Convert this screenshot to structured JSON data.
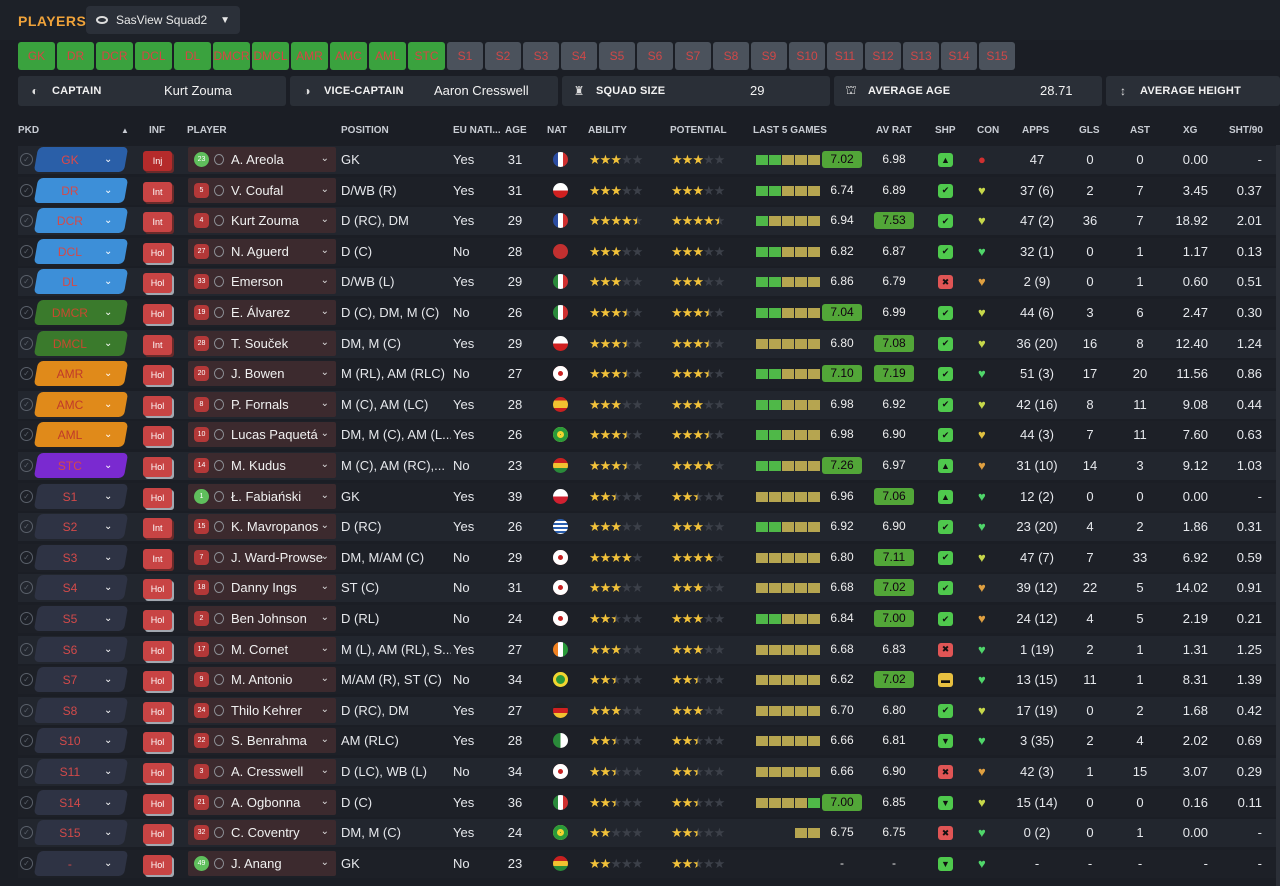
{
  "header": {
    "title": "PLAYERS",
    "view": "SasView Squad2"
  },
  "filters": [
    "GK",
    "DR",
    "DCR",
    "DCL",
    "DL",
    "DMCR",
    "DMCL",
    "AMR",
    "AMC",
    "AML",
    "STC",
    "S1",
    "S2",
    "S3",
    "S4",
    "S5",
    "S6",
    "S7",
    "S8",
    "S9",
    "S10",
    "S11",
    "S12",
    "S13",
    "S14",
    "S15"
  ],
  "filters_selected_count": 11,
  "info": {
    "captain_label": "CAPTAIN",
    "captain": "Kurt Zouma",
    "vice_label": "VICE-CAPTAIN",
    "vice": "Aaron Cresswell",
    "squad_label": "SQUAD SIZE",
    "squad": "29",
    "age_label": "AVERAGE AGE",
    "age": "28.71",
    "height_label": "AVERAGE HEIGHT"
  },
  "columns": {
    "pkd": "PKD",
    "inf": "INF",
    "player": "PLAYER",
    "position": "POSITION",
    "eu": "EU NATI...",
    "age": "AGE",
    "nat": "NAT",
    "ability": "ABILITY",
    "potential": "POTENTIAL",
    "last5": "LAST 5 GAMES",
    "avrat": "AV RAT",
    "shp": "SHP",
    "con": "CON",
    "apps": "APPS",
    "gls": "GLS",
    "ast": "AST",
    "xg": "XG",
    "sht": "SHT/90"
  },
  "colors": {
    "gk": "#2a5fa8",
    "def": "#3d8fd8",
    "dm": "#3a7a2c",
    "am": "#e08a1a",
    "st": "#7a2ad0",
    "sub": "#2e3344",
    "hi": "#52a638"
  },
  "rows": [
    {
      "pkd": "GK",
      "grp": "gk",
      "inf": "Inj",
      "num": "23",
      "green": true,
      "name": "A. Areola",
      "pos": "GK",
      "eu": "Yes",
      "age": "31",
      "flag": "france",
      "ab": 3,
      "po": 3,
      "games": [
        "g",
        "g",
        "y",
        "y",
        "y"
      ],
      "last": "7.02",
      "lastHi": true,
      "av": "6.98",
      "avHi": false,
      "shp": "up",
      "con": "red-dot",
      "apps": "47",
      "gls": "0",
      "ast": "0",
      "xg": "0.00",
      "sht": "-"
    },
    {
      "pkd": "DR",
      "grp": "def",
      "inf": "Int",
      "num": "5",
      "name": "V. Coufal",
      "pos": "D/WB (R)",
      "eu": "Yes",
      "age": "31",
      "flag": "czech",
      "ab": 3,
      "po": 3,
      "games": [
        "g",
        "g",
        "y",
        "y",
        "y"
      ],
      "last": "6.74",
      "av": "6.89",
      "shp": "thumb-up",
      "con": "heart-yg",
      "apps": "37 (6)",
      "gls": "2",
      "ast": "7",
      "xg": "3.45",
      "sht": "0.37"
    },
    {
      "pkd": "DCR",
      "grp": "def",
      "inf": "Int",
      "num": "4",
      "name": "Kurt Zouma",
      "pos": "D (RC), DM",
      "eu": "Yes",
      "age": "29",
      "flag": "france",
      "ab": 4.5,
      "po": 4.5,
      "games": [
        "g",
        "y",
        "y",
        "y",
        "y"
      ],
      "last": "6.94",
      "av": "7.53",
      "avHi": true,
      "shp": "thumb-up",
      "con": "heart-yg",
      "apps": "47 (2)",
      "gls": "36",
      "ast": "7",
      "xg": "18.92",
      "sht": "2.01"
    },
    {
      "pkd": "DCL",
      "grp": "def",
      "inf": "Hol",
      "num": "27",
      "name": "N. Aguerd",
      "pos": "D (C)",
      "eu": "No",
      "age": "28",
      "flag": "morocco",
      "ab": 3,
      "po": 3,
      "games": [
        "g",
        "g",
        "y",
        "y",
        "y"
      ],
      "last": "6.82",
      "av": "6.87",
      "shp": "thumb-up",
      "con": "heart-g",
      "apps": "32 (1)",
      "gls": "0",
      "ast": "1",
      "xg": "1.17",
      "sht": "0.13"
    },
    {
      "pkd": "DL",
      "grp": "def",
      "inf": "Hol",
      "num": "33",
      "name": "Emerson",
      "pos": "D/WB (L)",
      "eu": "Yes",
      "age": "29",
      "flag": "italy",
      "ab": 3,
      "po": 3,
      "games": [
        "g",
        "g",
        "y",
        "y",
        "y"
      ],
      "last": "6.86",
      "av": "6.79",
      "shp": "thumb-down",
      "con": "heart-o",
      "apps": "2 (9)",
      "gls": "0",
      "ast": "1",
      "xg": "0.60",
      "sht": "0.51"
    },
    {
      "pkd": "DMCR",
      "grp": "dm",
      "inf": "Hol",
      "num": "19",
      "name": "E. Álvarez",
      "pos": "D (C), DM, M (C)",
      "eu": "No",
      "age": "26",
      "flag": "mexico",
      "ab": 3.5,
      "po": 3.5,
      "games": [
        "g",
        "g",
        "y",
        "y",
        "y"
      ],
      "last": "7.04",
      "lastHi": true,
      "av": "6.99",
      "shp": "thumb-up",
      "con": "heart-yg",
      "apps": "44 (6)",
      "gls": "3",
      "ast": "6",
      "xg": "2.47",
      "sht": "0.30"
    },
    {
      "pkd": "DMCL",
      "grp": "dm",
      "inf": "Int",
      "num": "28",
      "name": "T. Souček",
      "pos": "DM, M (C)",
      "eu": "Yes",
      "age": "29",
      "flag": "czech",
      "ab": 3.5,
      "po": 3.5,
      "games": [
        "y",
        "y",
        "y",
        "y",
        "y"
      ],
      "last": "6.80",
      "av": "7.08",
      "avHi": true,
      "shp": "thumb-up",
      "con": "heart-yg",
      "apps": "36 (20)",
      "gls": "16",
      "ast": "8",
      "xg": "12.40",
      "sht": "1.24"
    },
    {
      "pkd": "AMR",
      "grp": "am",
      "inf": "Hol",
      "num": "20",
      "name": "J. Bowen",
      "pos": "M (RL), AM (RLC)",
      "eu": "No",
      "age": "27",
      "flag": "england",
      "ab": 3.5,
      "po": 3.5,
      "games": [
        "g",
        "g",
        "y",
        "y",
        "y"
      ],
      "last": "7.10",
      "lastHi": true,
      "av": "7.19",
      "avHi": true,
      "shp": "thumb-up",
      "con": "heart-g",
      "apps": "51 (3)",
      "gls": "17",
      "ast": "20",
      "xg": "11.56",
      "sht": "0.86"
    },
    {
      "pkd": "AMC",
      "grp": "am",
      "inf": "Hol",
      "num": "8",
      "name": "P. Fornals",
      "pos": "M (C), AM (LC)",
      "eu": "Yes",
      "age": "28",
      "flag": "spain",
      "ab": 3,
      "po": 3,
      "games": [
        "g",
        "g",
        "y",
        "y",
        "y"
      ],
      "last": "6.98",
      "av": "6.92",
      "shp": "thumb-up",
      "con": "heart-yg",
      "apps": "42 (16)",
      "gls": "8",
      "ast": "11",
      "xg": "9.08",
      "sht": "0.44"
    },
    {
      "pkd": "AML",
      "grp": "am",
      "inf": "Hol",
      "num": "10",
      "name": "Lucas Paquetá",
      "pos": "DM, M (C), AM (L...",
      "eu": "Yes",
      "age": "26",
      "flag": "brazil",
      "ab": 3.5,
      "po": 3.5,
      "games": [
        "g",
        "g",
        "y",
        "y",
        "y"
      ],
      "last": "6.98",
      "av": "6.90",
      "shp": "thumb-up",
      "con": "heart-y",
      "apps": "44 (3)",
      "gls": "7",
      "ast": "11",
      "xg": "7.60",
      "sht": "0.63"
    },
    {
      "pkd": "STC",
      "grp": "st",
      "inf": "Hol",
      "num": "14",
      "name": "M. Kudus",
      "pos": "M (C), AM (RC),...",
      "eu": "No",
      "age": "23",
      "flag": "ghana",
      "ab": 3.5,
      "po": 4,
      "games": [
        "g",
        "g",
        "y",
        "y",
        "y"
      ],
      "last": "7.26",
      "lastHi": true,
      "av": "6.97",
      "shp": "up",
      "con": "heart-o",
      "apps": "31 (10)",
      "gls": "14",
      "ast": "3",
      "xg": "9.12",
      "sht": "1.03"
    },
    {
      "pkd": "S1",
      "grp": "sub",
      "inf": "Hol",
      "num": "1",
      "green": true,
      "name": "Ł. Fabiański",
      "pos": "GK",
      "eu": "Yes",
      "age": "39",
      "flag": "poland",
      "ab": 2.5,
      "po": 2.5,
      "games": [
        "y",
        "y",
        "y",
        "y",
        "y"
      ],
      "last": "6.96",
      "av": "7.06",
      "avHi": true,
      "shp": "up",
      "con": "heart-g",
      "apps": "12 (2)",
      "gls": "0",
      "ast": "0",
      "xg": "0.00",
      "sht": "-"
    },
    {
      "pkd": "S2",
      "grp": "sub",
      "inf": "Int",
      "num": "15",
      "name": "K. Mavropanos",
      "pos": "D (RC)",
      "eu": "Yes",
      "age": "26",
      "flag": "greece",
      "ab": 3,
      "po": 3,
      "games": [
        "g",
        "g",
        "y",
        "y",
        "y"
      ],
      "last": "6.92",
      "av": "6.90",
      "shp": "thumb-up",
      "con": "heart-g",
      "apps": "23 (20)",
      "gls": "4",
      "ast": "2",
      "xg": "1.86",
      "sht": "0.31"
    },
    {
      "pkd": "S3",
      "grp": "sub",
      "inf": "Int",
      "num": "7",
      "name": "J. Ward-Prowse",
      "pos": "DM, M/AM (C)",
      "eu": "No",
      "age": "29",
      "flag": "england",
      "ab": 4,
      "po": 4,
      "games": [
        "y",
        "y",
        "y",
        "y",
        "y"
      ],
      "last": "6.80",
      "av": "7.11",
      "avHi": true,
      "shp": "thumb-up",
      "con": "heart-yg",
      "apps": "47 (7)",
      "gls": "7",
      "ast": "33",
      "xg": "6.92",
      "sht": "0.59"
    },
    {
      "pkd": "S4",
      "grp": "sub",
      "inf": "Hol",
      "num": "18",
      "name": "Danny Ings",
      "pos": "ST (C)",
      "eu": "No",
      "age": "31",
      "flag": "england",
      "ab": 3,
      "po": 3,
      "games": [
        "y",
        "y",
        "y",
        "y",
        "y"
      ],
      "last": "6.68",
      "av": "7.02",
      "avHi": true,
      "shp": "thumb-up",
      "con": "heart-o",
      "apps": "39 (12)",
      "gls": "22",
      "ast": "5",
      "xg": "14.02",
      "sht": "0.91"
    },
    {
      "pkd": "S5",
      "grp": "sub",
      "inf": "Hol",
      "num": "2",
      "name": "Ben Johnson",
      "pos": "D (RL)",
      "eu": "No",
      "age": "24",
      "flag": "england",
      "ab": 2.5,
      "po": 3,
      "games": [
        "g",
        "g",
        "y",
        "y",
        "y"
      ],
      "last": "6.84",
      "av": "7.00",
      "avHi": true,
      "shp": "thumb-up",
      "con": "heart-o",
      "apps": "24 (12)",
      "gls": "4",
      "ast": "5",
      "xg": "2.19",
      "sht": "0.21"
    },
    {
      "pkd": "S6",
      "grp": "sub",
      "inf": "Hol",
      "num": "17",
      "name": "M. Cornet",
      "pos": "M (L), AM (RL), S...",
      "eu": "Yes",
      "age": "27",
      "flag": "ivory",
      "ab": 3,
      "po": 3,
      "games": [
        "y",
        "y",
        "y",
        "y",
        "y"
      ],
      "last": "6.68",
      "av": "6.83",
      "shp": "thumb-down",
      "con": "heart-g",
      "apps": "1 (19)",
      "gls": "2",
      "ast": "1",
      "xg": "1.31",
      "sht": "1.25"
    },
    {
      "pkd": "S7",
      "grp": "sub",
      "inf": "Hol",
      "num": "9",
      "name": "M. Antonio",
      "pos": "M/AM (R), ST (C)",
      "eu": "No",
      "age": "34",
      "flag": "jamaica",
      "ab": 2.5,
      "po": 2.5,
      "games": [
        "y",
        "y",
        "y",
        "y",
        "y"
      ],
      "last": "6.62",
      "av": "7.02",
      "avHi": true,
      "shp": "yellow",
      "con": "heart-g",
      "apps": "13 (15)",
      "gls": "11",
      "ast": "1",
      "xg": "8.31",
      "sht": "1.39"
    },
    {
      "pkd": "S8",
      "grp": "sub",
      "inf": "Hol",
      "num": "24",
      "name": "Thilo Kehrer",
      "pos": "D (RC), DM",
      "eu": "Yes",
      "age": "27",
      "flag": "germany",
      "ab": 3,
      "po": 3,
      "games": [
        "y",
        "y",
        "y",
        "y",
        "y"
      ],
      "last": "6.70",
      "av": "6.80",
      "shp": "thumb-up",
      "con": "heart-yg",
      "apps": "17 (19)",
      "gls": "0",
      "ast": "2",
      "xg": "1.68",
      "sht": "0.42"
    },
    {
      "pkd": "S10",
      "grp": "sub",
      "inf": "Hol",
      "num": "22",
      "name": "S. Benrahma",
      "pos": "AM (RLC)",
      "eu": "Yes",
      "age": "28",
      "flag": "algeria",
      "ab": 2.5,
      "po": 2.5,
      "games": [
        "y",
        "y",
        "y",
        "y",
        "y"
      ],
      "last": "6.66",
      "av": "6.81",
      "shp": "down",
      "con": "heart-g",
      "apps": "3 (35)",
      "gls": "2",
      "ast": "4",
      "xg": "2.02",
      "sht": "0.69"
    },
    {
      "pkd": "S11",
      "grp": "sub",
      "inf": "Hol",
      "num": "3",
      "name": "A. Cresswell",
      "pos": "D (LC), WB (L)",
      "eu": "No",
      "age": "34",
      "flag": "england",
      "ab": 2.5,
      "po": 2.5,
      "games": [
        "y",
        "y",
        "y",
        "y",
        "y"
      ],
      "last": "6.66",
      "av": "6.90",
      "shp": "thumb-down",
      "con": "heart-o",
      "apps": "42 (3)",
      "gls": "1",
      "ast": "15",
      "xg": "3.07",
      "sht": "0.29"
    },
    {
      "pkd": "S14",
      "grp": "sub",
      "inf": "Hol",
      "num": "21",
      "name": "A. Ogbonna",
      "pos": "D (C)",
      "eu": "Yes",
      "age": "36",
      "flag": "italy",
      "ab": 2.5,
      "po": 2.5,
      "games": [
        "y",
        "y",
        "y",
        "y",
        "g"
      ],
      "last": "7.00",
      "lastHi": true,
      "av": "6.85",
      "shp": "down",
      "con": "heart-yg",
      "apps": "15 (14)",
      "gls": "0",
      "ast": "0",
      "xg": "0.16",
      "sht": "0.11"
    },
    {
      "pkd": "S15",
      "grp": "sub",
      "inf": "Hol",
      "num": "32",
      "name": "C. Coventry",
      "pos": "DM, M (C)",
      "eu": "Yes",
      "age": "24",
      "flag": "brazil",
      "ab": 2,
      "po": 2.5,
      "games": [
        "",
        "",
        "",
        "y",
        "y"
      ],
      "last": "6.75",
      "av": "6.75",
      "shp": "thumb-down",
      "con": "heart-g",
      "apps": "0 (2)",
      "gls": "0",
      "ast": "1",
      "xg": "0.00",
      "sht": "-"
    },
    {
      "pkd": "-",
      "grp": "sub",
      "inf": "Hol",
      "num": "49",
      "green": true,
      "name": "J. Anang",
      "pos": "GK",
      "eu": "No",
      "age": "23",
      "flag": "ghana",
      "ab": 2,
      "po": 2.5,
      "games": [
        "",
        "",
        "",
        "",
        ""
      ],
      "last": "-",
      "av": "-",
      "shp": "down",
      "con": "heart-g",
      "apps": "-",
      "gls": "-",
      "ast": "-",
      "xg": "-",
      "sht": "-"
    }
  ]
}
